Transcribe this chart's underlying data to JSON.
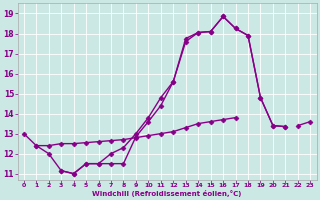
{
  "xlabel": "Windchill (Refroidissement éolien,°C)",
  "bg_color": "#cce8e4",
  "line_color": "#880088",
  "xlim": [
    -0.5,
    23.5
  ],
  "ylim": [
    10.7,
    19.5
  ],
  "xticks": [
    0,
    1,
    2,
    3,
    4,
    5,
    6,
    7,
    8,
    9,
    10,
    11,
    12,
    13,
    14,
    15,
    16,
    17,
    18,
    19,
    20,
    21,
    22,
    23
  ],
  "yticks": [
    11,
    12,
    13,
    14,
    15,
    16,
    17,
    18,
    19
  ],
  "line1_x": [
    0,
    1,
    2,
    3,
    4,
    5,
    6,
    7,
    8,
    9,
    10,
    11,
    12,
    13,
    14,
    15,
    16,
    17,
    18,
    19,
    20,
    21
  ],
  "line1_y": [
    13.0,
    12.4,
    12.0,
    11.15,
    11.0,
    11.5,
    11.5,
    11.5,
    11.5,
    12.85,
    13.6,
    14.4,
    15.6,
    17.75,
    18.05,
    18.1,
    18.85,
    18.25,
    17.9,
    14.8,
    13.4,
    13.35
  ],
  "line2_x": [
    3,
    4,
    5,
    6,
    7,
    8,
    9,
    10,
    11,
    12,
    13,
    14,
    15,
    16,
    17,
    18,
    19,
    20,
    21
  ],
  "line2_y": [
    11.15,
    11.0,
    11.5,
    11.5,
    12.0,
    12.3,
    13.0,
    13.8,
    14.8,
    15.6,
    17.6,
    18.05,
    18.1,
    18.85,
    18.25,
    17.9,
    14.8,
    13.4,
    13.35
  ],
  "line3_x": [
    1,
    2,
    3,
    4,
    5,
    6,
    7,
    8,
    9,
    10,
    11,
    12,
    13,
    14,
    15,
    16,
    17,
    22,
    23
  ],
  "line3_y": [
    12.4,
    12.4,
    12.5,
    12.5,
    12.55,
    12.6,
    12.65,
    12.7,
    12.8,
    12.9,
    13.0,
    13.1,
    13.3,
    13.5,
    13.6,
    13.7,
    13.8,
    13.4,
    13.6
  ],
  "marker": "D",
  "markersize": 2.5,
  "linewidth": 1.0
}
